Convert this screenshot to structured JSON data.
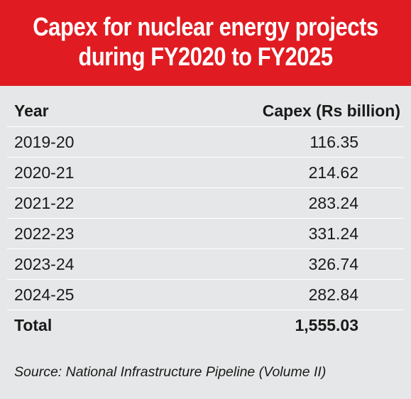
{
  "header": {
    "title_line1": "Capex for nuclear energy projects",
    "title_line2": "during FY2020 to FY2025"
  },
  "table": {
    "col_year": "Year",
    "col_capex": "Capex (Rs billion)",
    "rows": [
      {
        "year": "2019-20",
        "capex": "116.35"
      },
      {
        "year": "2020-21",
        "capex": "214.62"
      },
      {
        "year": "2021-22",
        "capex": "283.24"
      },
      {
        "year": "2022-23",
        "capex": "331.24"
      },
      {
        "year": "2023-24",
        "capex": "326.74"
      },
      {
        "year": "2024-25",
        "capex": "282.84"
      }
    ],
    "total_label": "Total",
    "total_value": "1,555.03"
  },
  "source": "Source: National Infrastructure Pipeline (Volume II)",
  "colors": {
    "header_bg": "#e11b22",
    "body_bg": "#e6e7e8",
    "header_text": "#ffffff",
    "body_text": "#1a1a1a"
  },
  "chart_data": {
    "type": "table",
    "title": "Capex for nuclear energy projects during FY2020 to FY2025",
    "columns": [
      "Year",
      "Capex (Rs billion)"
    ],
    "categories": [
      "2019-20",
      "2020-21",
      "2021-22",
      "2022-23",
      "2023-24",
      "2024-25"
    ],
    "values": [
      116.35,
      214.62,
      283.24,
      331.24,
      326.74,
      282.84
    ],
    "total": 1555.03,
    "source": "Source: National Infrastructure Pipeline (Volume II)"
  }
}
